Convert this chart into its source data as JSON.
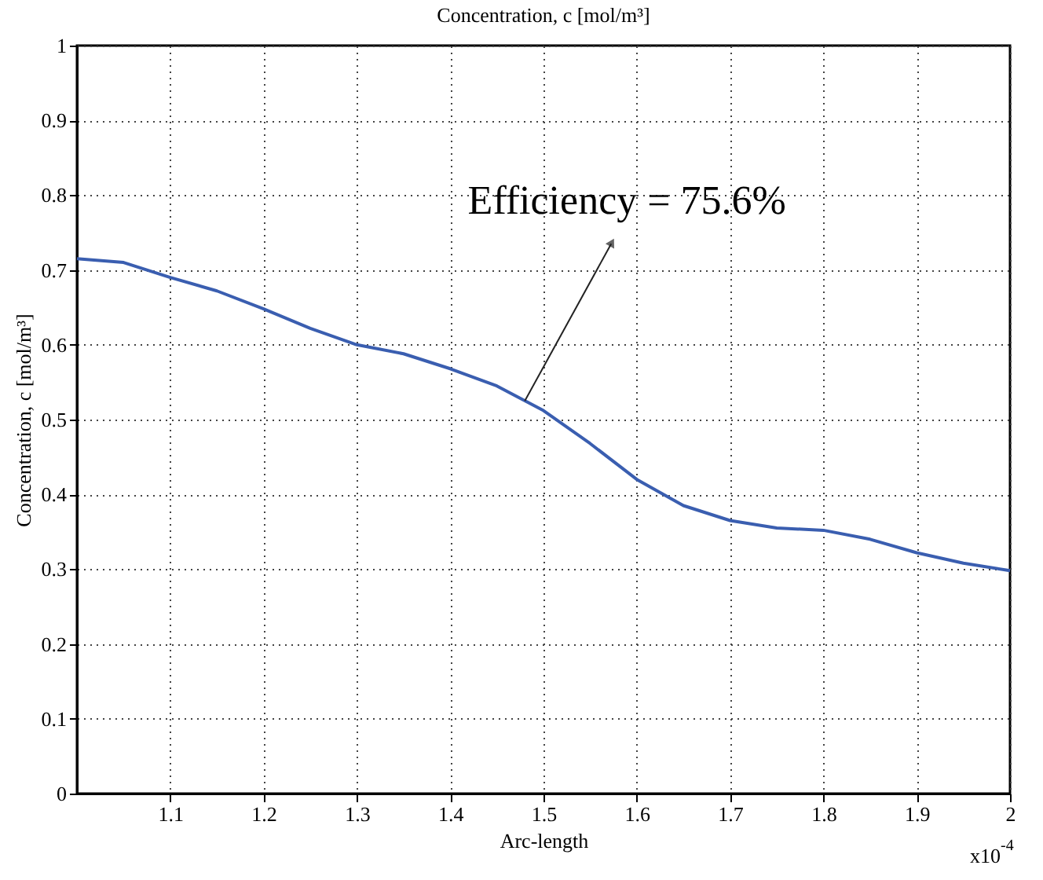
{
  "chart_data": {
    "type": "line",
    "title": "Concentration, c [mol/m³]",
    "xlabel": "Arc-length",
    "ylabel": "Concentration, c [mol/m³]",
    "x": [
      1.0,
      1.05,
      1.1,
      1.15,
      1.2,
      1.25,
      1.3,
      1.35,
      1.4,
      1.45,
      1.5,
      1.55,
      1.6,
      1.65,
      1.7,
      1.75,
      1.8,
      1.85,
      1.9,
      1.95,
      2.0
    ],
    "series": [
      {
        "color": "#3a5eb0",
        "values": [
          0.715,
          0.71,
          0.69,
          0.672,
          0.648,
          0.622,
          0.6,
          0.588,
          0.568,
          0.545,
          0.512,
          0.468,
          0.42,
          0.385,
          0.365,
          0.355,
          0.352,
          0.34,
          0.322,
          0.308,
          0.298
        ]
      }
    ],
    "xlim": [
      1,
      2
    ],
    "xticks": [
      1.1,
      1.2,
      1.3,
      1.4,
      1.5,
      1.6,
      1.7,
      1.8,
      1.9,
      2
    ],
    "ylim": [
      0,
      1
    ],
    "yticks": [
      0,
      0.1,
      0.2,
      0.3,
      0.4,
      0.5,
      0.6,
      0.7,
      0.8,
      0.9,
      1
    ],
    "grid": true,
    "legend": false,
    "marker": "none",
    "line_style": "solid",
    "annotations": [
      {
        "text": "Efficiency = 75.6%",
        "x": 1.48,
        "y": 0.525
      },
      "x10$^{-4}$"
    ]
  }
}
